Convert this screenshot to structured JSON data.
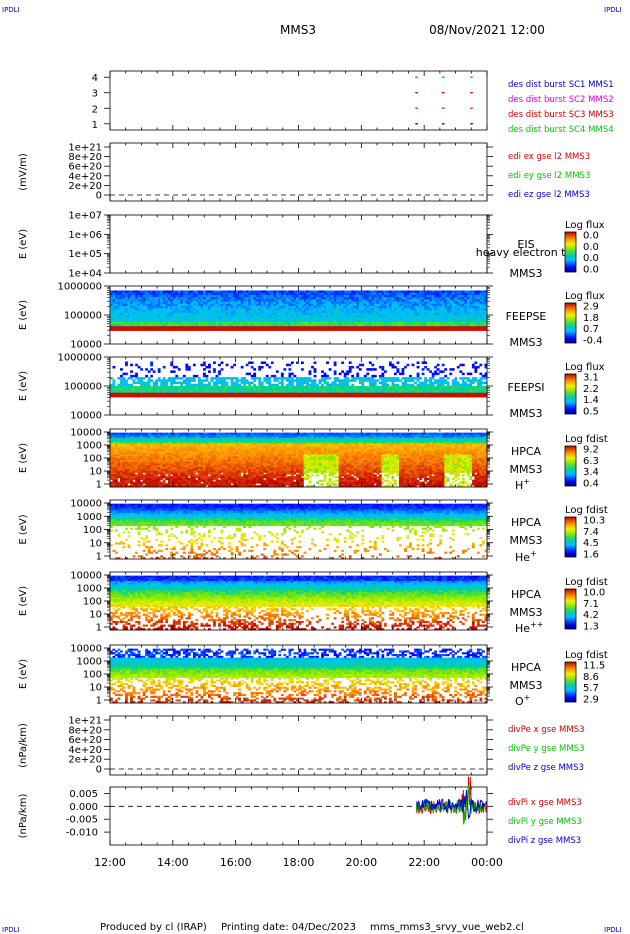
{
  "header": {
    "corner": "IPDLI",
    "spacecraft": "MMS3",
    "datetime": "08/Nov/2021 12:00"
  },
  "footer": {
    "produced": "Produced by cl (IRAP)",
    "printing": "Printing date: 04/Dec/2023",
    "script": "mms_mms3_srvy_vue_web2.cl"
  },
  "colors": {
    "red": "#d40000",
    "green": "#00c800",
    "blue": "#0000cc",
    "magenta": "#e000e0",
    "dashed": "#000000"
  },
  "chart_data": [
    {
      "type": "scatter",
      "panel": "dist-burst",
      "ylim": [
        0.6,
        4.4
      ],
      "yticks": [
        "1",
        "2",
        "3",
        "4"
      ],
      "series": [
        {
          "name": "des dist burst SC1 MMS1",
          "color": "#00c800",
          "x": [
            21.75,
            22.6,
            23.5
          ],
          "y": [
            4,
            4,
            4
          ]
        },
        {
          "name": "des dist burst SC2 MMS2",
          "color": "#e000e0",
          "x": [
            21.75,
            22.6,
            23.5
          ],
          "y": [
            2,
            2,
            2
          ]
        },
        {
          "name": "des dist burst SC3 MMS3",
          "color": "#d40000",
          "x": [
            21.75,
            22.6,
            23.5
          ],
          "y": [
            3,
            3,
            3
          ]
        },
        {
          "name": "des dist burst SC4 MMS4",
          "color": "#0000cc",
          "x": [
            21.75,
            22.6,
            23.5
          ],
          "y": [
            1,
            1,
            1
          ]
        }
      ],
      "legend": [
        "des dist burst SC1 MMS1",
        "des dist burst SC2 MMS2",
        "des dist burst SC3 MMS3",
        "des dist burst SC4 MMS4"
      ]
    },
    {
      "type": "line",
      "panel": "edi",
      "ylabel": "(mV/m)",
      "yticks": [
        "1e+21",
        "8e+20",
        "6e+20",
        "4e+20",
        "2e+20",
        "0"
      ],
      "legend": [
        "edi ex gse l2 MMS3",
        "edi ey gse l2 MMS3",
        "edi ez gse l2 MMS3"
      ]
    },
    {
      "type": "heatmap",
      "panel": "eis",
      "ylabel": "E (eV)",
      "yticks": [
        "1e+07",
        "1e+06",
        "1e+05",
        "1e+04"
      ],
      "labels": [
        "EIS",
        "MMS3"
      ],
      "overlay_text": "heavy electron to",
      "colorbar_title": "Log flux",
      "colorbar_ticks": [
        "0.0",
        "0.0",
        "0.0",
        "0.0"
      ]
    },
    {
      "type": "heatmap",
      "panel": "feepse",
      "ylabel": "E (eV)",
      "yticks": [
        "1000000",
        "100000",
        "10000"
      ],
      "labels": [
        "FEEPSE",
        "MMS3"
      ],
      "colorbar_title": "Log flux",
      "colorbar_ticks": [
        "2.9",
        "1.8",
        "0.7",
        "-0.4"
      ]
    },
    {
      "type": "heatmap",
      "panel": "feepsi",
      "ylabel": "E (eV)",
      "yticks": [
        "1000000",
        "100000",
        "10000"
      ],
      "labels": [
        "FEEPSI",
        "MMS3"
      ],
      "colorbar_title": "Log flux",
      "colorbar_ticks": [
        "3.1",
        "2.2",
        "1.4",
        "0.5"
      ]
    },
    {
      "type": "heatmap",
      "panel": "hpca-h",
      "ylabel": "E (eV)",
      "yticks": [
        "10000",
        "1000",
        "100",
        "10",
        "1"
      ],
      "labels": [
        "HPCA",
        "MMS3",
        "H",
        "+"
      ],
      "colorbar_title": "Log fdist",
      "colorbar_ticks": [
        "9.2",
        "6.3",
        "3.4",
        "0.4"
      ]
    },
    {
      "type": "heatmap",
      "panel": "hpca-he",
      "ylabel": "E (eV)",
      "yticks": [
        "10000",
        "1000",
        "100",
        "10",
        "1"
      ],
      "labels": [
        "HPCA",
        "MMS3",
        "He",
        "+"
      ],
      "colorbar_title": "Log fdist",
      "colorbar_ticks": [
        "10.3",
        "7.4",
        "4.5",
        "1.6"
      ]
    },
    {
      "type": "heatmap",
      "panel": "hpca-hepp",
      "ylabel": "E (eV)",
      "yticks": [
        "10000",
        "1000",
        "100",
        "10",
        "1"
      ],
      "labels": [
        "HPCA",
        "MMS3",
        "He",
        "++"
      ],
      "colorbar_title": "Log fdist",
      "colorbar_ticks": [
        "10.0",
        "7.1",
        "4.2",
        "1.3"
      ]
    },
    {
      "type": "heatmap",
      "panel": "hpca-o",
      "ylabel": "E (eV)",
      "yticks": [
        "10000",
        "1000",
        "100",
        "10",
        "1"
      ],
      "labels": [
        "HPCA",
        "MMS3",
        "O",
        "+"
      ],
      "colorbar_title": "Log fdist",
      "colorbar_ticks": [
        "11.5",
        "8.6",
        "5.7",
        "2.9"
      ]
    },
    {
      "type": "line",
      "panel": "divpe",
      "ylabel": "(nPa/km)",
      "yticks": [
        "1e+21",
        "8e+20",
        "6e+20",
        "4e+20",
        "2e+20",
        "0"
      ],
      "legend": [
        "divPe x gse MMS3",
        "divPe y gse MMS3",
        "divPe z gse MMS3"
      ]
    },
    {
      "type": "line",
      "panel": "divpi",
      "ylabel": "(nPa/km)",
      "ylim": [
        -0.015,
        0.0075
      ],
      "yticks": [
        "0.005",
        "0.000",
        "-0.005",
        "-0.010"
      ],
      "legend": [
        "divPi x gse MMS3",
        "divPi y gse MMS3",
        "divPi z gse MMS3"
      ]
    }
  ],
  "xaxis": {
    "xlim": [
      12,
      24
    ],
    "ticks": [
      "12:00",
      "14:00",
      "16:00",
      "18:00",
      "20:00",
      "22:00",
      "00:00"
    ]
  }
}
